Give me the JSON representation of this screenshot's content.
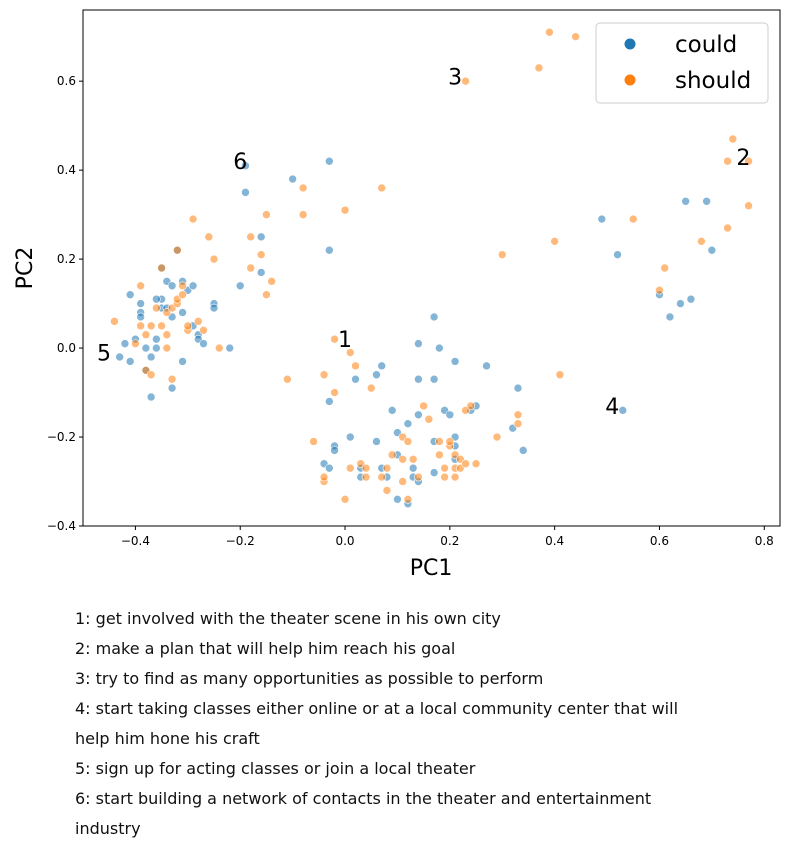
{
  "chart_data": {
    "type": "scatter",
    "xlabel": "PC1",
    "ylabel": "PC2",
    "xlim": [
      -0.5,
      0.83
    ],
    "ylim": [
      -0.4,
      0.76
    ],
    "xticks": [
      -0.4,
      -0.2,
      0.0,
      0.2,
      0.4,
      0.6,
      0.8
    ],
    "xtick_labels": [
      "−0.4",
      "−0.2",
      "0.0",
      "0.2",
      "0.4",
      "0.6",
      "0.8"
    ],
    "yticks": [
      -0.4,
      -0.2,
      0.0,
      0.2,
      0.4,
      0.6
    ],
    "ytick_labels": [
      "−0.4",
      "−0.2",
      "0.0",
      "0.2",
      "0.4",
      "0.6"
    ],
    "grid": false,
    "legend_position": "top-right",
    "series": [
      {
        "name": "could",
        "color": "#1f77b4",
        "points": [
          [
            -0.42,
            0.01
          ],
          [
            -0.41,
            0.12
          ],
          [
            -0.4,
            0.02
          ],
          [
            -0.39,
            0.1
          ],
          [
            -0.39,
            0.08
          ],
          [
            -0.39,
            0.07
          ],
          [
            -0.38,
            0.0
          ],
          [
            -0.38,
            -0.05
          ],
          [
            -0.37,
            -0.02
          ],
          [
            -0.37,
            -0.11
          ],
          [
            -0.36,
            0.02
          ],
          [
            -0.36,
            0.0
          ],
          [
            -0.35,
            0.18
          ],
          [
            -0.35,
            0.11
          ],
          [
            -0.35,
            0.09
          ],
          [
            -0.34,
            0.15
          ],
          [
            -0.34,
            0.09
          ],
          [
            -0.33,
            0.14
          ],
          [
            -0.33,
            0.07
          ],
          [
            -0.33,
            -0.09
          ],
          [
            -0.32,
            0.22
          ],
          [
            -0.31,
            0.15
          ],
          [
            -0.31,
            0.08
          ],
          [
            -0.31,
            -0.03
          ],
          [
            -0.3,
            0.13
          ],
          [
            -0.29,
            0.14
          ],
          [
            -0.29,
            0.05
          ],
          [
            -0.28,
            0.03
          ],
          [
            -0.28,
            0.02
          ],
          [
            -0.27,
            0.01
          ],
          [
            -0.25,
            0.1
          ],
          [
            -0.25,
            0.09
          ],
          [
            -0.22,
            0.0
          ],
          [
            -0.41,
            -0.03
          ],
          [
            -0.43,
            -0.02
          ],
          [
            -0.36,
            0.11
          ],
          [
            -0.2,
            0.14
          ],
          [
            -0.19,
            0.41
          ],
          [
            -0.19,
            0.35
          ],
          [
            -0.16,
            0.25
          ],
          [
            -0.16,
            0.17
          ],
          [
            -0.1,
            0.38
          ],
          [
            -0.03,
            0.42
          ],
          [
            -0.03,
            0.22
          ],
          [
            -0.03,
            -0.12
          ],
          [
            -0.02,
            -0.22
          ],
          [
            -0.02,
            -0.23
          ],
          [
            -0.04,
            -0.26
          ],
          [
            -0.03,
            -0.27
          ],
          [
            0.01,
            -0.2
          ],
          [
            0.02,
            -0.07
          ],
          [
            0.03,
            -0.29
          ],
          [
            0.03,
            -0.27
          ],
          [
            0.06,
            -0.21
          ],
          [
            0.06,
            -0.06
          ],
          [
            0.07,
            -0.04
          ],
          [
            0.07,
            -0.27
          ],
          [
            0.08,
            -0.29
          ],
          [
            0.09,
            -0.14
          ],
          [
            0.1,
            -0.34
          ],
          [
            0.1,
            -0.24
          ],
          [
            0.1,
            -0.19
          ],
          [
            0.12,
            -0.17
          ],
          [
            0.12,
            -0.35
          ],
          [
            0.13,
            -0.27
          ],
          [
            0.13,
            -0.29
          ],
          [
            0.14,
            -0.3
          ],
          [
            0.14,
            0.01
          ],
          [
            0.14,
            -0.07
          ],
          [
            0.14,
            -0.15
          ],
          [
            0.17,
            0.07
          ],
          [
            0.17,
            -0.07
          ],
          [
            0.17,
            -0.28
          ],
          [
            0.17,
            -0.21
          ],
          [
            0.18,
            0.0
          ],
          [
            0.19,
            -0.14
          ],
          [
            0.2,
            -0.15
          ],
          [
            0.21,
            -0.22
          ],
          [
            0.21,
            -0.25
          ],
          [
            0.21,
            -0.2
          ],
          [
            0.21,
            -0.03
          ],
          [
            0.24,
            -0.14
          ],
          [
            0.25,
            -0.13
          ],
          [
            0.27,
            -0.04
          ],
          [
            0.32,
            -0.18
          ],
          [
            0.33,
            -0.09
          ],
          [
            0.34,
            -0.23
          ],
          [
            0.49,
            0.29
          ],
          [
            0.52,
            0.21
          ],
          [
            0.53,
            -0.14
          ],
          [
            0.6,
            0.12
          ],
          [
            0.62,
            0.07
          ],
          [
            0.64,
            0.1
          ],
          [
            0.65,
            0.33
          ],
          [
            0.66,
            0.11
          ],
          [
            0.69,
            0.33
          ],
          [
            0.7,
            0.22
          ]
        ]
      },
      {
        "name": "should",
        "color": "#ff7f0e",
        "points": [
          [
            -0.44,
            0.06
          ],
          [
            -0.4,
            0.01
          ],
          [
            -0.39,
            0.05
          ],
          [
            -0.39,
            0.14
          ],
          [
            -0.38,
            0.03
          ],
          [
            -0.38,
            -0.05
          ],
          [
            -0.37,
            -0.06
          ],
          [
            -0.37,
            0.05
          ],
          [
            -0.36,
            0.09
          ],
          [
            -0.35,
            0.18
          ],
          [
            -0.35,
            0.05
          ],
          [
            -0.34,
            0.0
          ],
          [
            -0.34,
            0.03
          ],
          [
            -0.34,
            0.08
          ],
          [
            -0.33,
            -0.07
          ],
          [
            -0.33,
            0.09
          ],
          [
            -0.32,
            0.1
          ],
          [
            -0.32,
            0.11
          ],
          [
            -0.32,
            0.22
          ],
          [
            -0.31,
            0.14
          ],
          [
            -0.31,
            0.12
          ],
          [
            -0.3,
            0.04
          ],
          [
            -0.3,
            0.05
          ],
          [
            -0.29,
            0.29
          ],
          [
            -0.28,
            0.06
          ],
          [
            -0.27,
            0.04
          ],
          [
            -0.26,
            0.25
          ],
          [
            -0.25,
            0.2
          ],
          [
            -0.24,
            0.0
          ],
          [
            -0.18,
            0.25
          ],
          [
            -0.18,
            0.18
          ],
          [
            -0.16,
            0.21
          ],
          [
            -0.15,
            0.3
          ],
          [
            -0.15,
            0.12
          ],
          [
            -0.14,
            0.15
          ],
          [
            -0.11,
            -0.07
          ],
          [
            -0.08,
            0.36
          ],
          [
            -0.08,
            0.3
          ],
          [
            -0.06,
            -0.21
          ],
          [
            -0.04,
            -0.06
          ],
          [
            -0.04,
            -0.3
          ],
          [
            -0.04,
            -0.29
          ],
          [
            -0.02,
            0.02
          ],
          [
            -0.02,
            -0.1
          ],
          [
            0.0,
            0.31
          ],
          [
            0.0,
            -0.34
          ],
          [
            0.01,
            -0.01
          ],
          [
            0.01,
            -0.27
          ],
          [
            0.02,
            -0.04
          ],
          [
            0.03,
            -0.26
          ],
          [
            0.04,
            -0.27
          ],
          [
            0.04,
            -0.29
          ],
          [
            0.05,
            -0.09
          ],
          [
            0.07,
            0.36
          ],
          [
            0.07,
            -0.29
          ],
          [
            0.08,
            -0.32
          ],
          [
            0.08,
            -0.27
          ],
          [
            0.09,
            -0.24
          ],
          [
            0.11,
            -0.2
          ],
          [
            0.11,
            -0.25
          ],
          [
            0.11,
            -0.3
          ],
          [
            0.12,
            -0.34
          ],
          [
            0.12,
            -0.21
          ],
          [
            0.13,
            -0.25
          ],
          [
            0.14,
            -0.29
          ],
          [
            0.15,
            -0.13
          ],
          [
            0.16,
            -0.16
          ],
          [
            0.18,
            -0.21
          ],
          [
            0.18,
            -0.24
          ],
          [
            0.19,
            -0.29
          ],
          [
            0.19,
            -0.27
          ],
          [
            0.2,
            -0.22
          ],
          [
            0.2,
            -0.21
          ],
          [
            0.21,
            -0.27
          ],
          [
            0.21,
            -0.29
          ],
          [
            0.21,
            -0.24
          ],
          [
            0.22,
            -0.25
          ],
          [
            0.22,
            -0.27
          ],
          [
            0.23,
            -0.26
          ],
          [
            0.23,
            -0.14
          ],
          [
            0.24,
            -0.13
          ],
          [
            0.25,
            -0.26
          ],
          [
            0.29,
            -0.2
          ],
          [
            0.3,
            0.21
          ],
          [
            0.33,
            -0.17
          ],
          [
            0.33,
            -0.15
          ],
          [
            0.23,
            0.6
          ],
          [
            0.37,
            0.63
          ],
          [
            0.39,
            0.71
          ],
          [
            0.4,
            0.24
          ],
          [
            0.41,
            -0.06
          ],
          [
            0.44,
            0.7
          ],
          [
            0.55,
            0.29
          ],
          [
            0.6,
            0.13
          ],
          [
            0.61,
            0.18
          ],
          [
            0.68,
            0.24
          ],
          [
            0.73,
            0.42
          ],
          [
            0.73,
            0.27
          ],
          [
            0.74,
            0.47
          ],
          [
            0.77,
            0.42
          ],
          [
            0.77,
            0.32
          ]
        ]
      }
    ],
    "annotations": [
      {
        "text": "1",
        "x": 0.0,
        "y": 0.02
      },
      {
        "text": "2",
        "x": 0.76,
        "y": 0.43
      },
      {
        "text": "3",
        "x": 0.21,
        "y": 0.61
      },
      {
        "text": "4",
        "x": 0.51,
        "y": -0.13
      },
      {
        "text": "5",
        "x": -0.46,
        "y": -0.01
      },
      {
        "text": "6",
        "x": -0.2,
        "y": 0.42
      }
    ]
  },
  "notes": [
    "1: get involved with the theater scene in his own city",
    "2: make a plan that will help him reach his goal",
    "3: try to find as many opportunities as possible to perform",
    "4: start taking classes either online or at a local community center that will",
    "help him hone his craft",
    "5: sign up for acting classes or join a local theater",
    "6: start building a network of contacts in the theater and entertainment",
    "industry"
  ]
}
